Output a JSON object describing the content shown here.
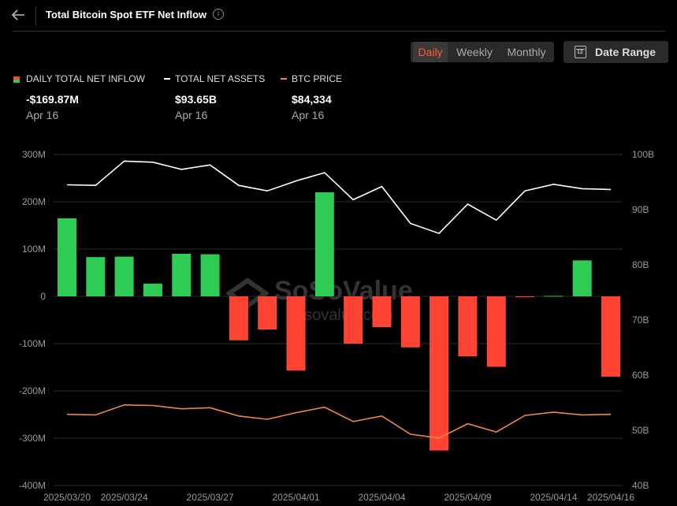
{
  "header": {
    "title": "Total Bitcoin Spot ETF Net Inflow",
    "info_glyph": "i"
  },
  "period": {
    "tabs": [
      "Daily",
      "Weekly",
      "Monthly"
    ],
    "active": "Daily"
  },
  "date_range": {
    "label": "Date Range",
    "calendar_number": "12"
  },
  "legend": [
    {
      "label": "DAILY TOTAL NET INFLOW",
      "value": "-$169.87M",
      "date": "Apr 16"
    },
    {
      "label": "TOTAL NET ASSETS",
      "value": "$93.65B",
      "date": "Apr 16"
    },
    {
      "label": "BTC PRICE",
      "value": "$84,334",
      "date": "Apr 16"
    }
  ],
  "watermark": {
    "brand": "SoSoValue",
    "domain": "sosovalue.com"
  },
  "colors": {
    "positive": "#2ecc55",
    "negative": "#ff4433",
    "assets_line": "#ffffff",
    "price_line": "#f0883e",
    "accent": "#ff5a36"
  },
  "chart_data": {
    "type": "bar",
    "categories": [
      "2025/03/20",
      "2025/03/21",
      "2025/03/24",
      "2025/03/25",
      "2025/03/26",
      "2025/03/27",
      "2025/03/28",
      "2025/03/31",
      "2025/04/01",
      "2025/04/02",
      "2025/04/03",
      "2025/04/04",
      "2025/04/07",
      "2025/04/08",
      "2025/04/09",
      "2025/04/10",
      "2025/04/11",
      "2025/04/14",
      "2025/04/15",
      "2025/04/16"
    ],
    "x_tick_labels": [
      "2025/03/20",
      "2025/03/24",
      "2025/03/27",
      "2025/04/01",
      "2025/04/04",
      "2025/04/09",
      "2025/04/14",
      "2025/04/16"
    ],
    "x_tick_indices": [
      0,
      2,
      5,
      8,
      11,
      14,
      17,
      19
    ],
    "series": [
      {
        "values": [
          165,
          83,
          84,
          27,
          90,
          89,
          -93,
          -70,
          -157,
          220,
          -100,
          -65,
          -108,
          -326,
          -127,
          -149,
          -1,
          1,
          76,
          -169.87
        ]
      },
      {
        "axis": "right",
        "values": [
          94.5,
          94.4,
          98.8,
          98.6,
          97.3,
          98.1,
          94.4,
          93.4,
          95.2,
          96.7,
          91.8,
          94.2,
          87.5,
          85.7,
          91.0,
          88.1,
          93.4,
          94.6,
          93.8,
          93.65
        ]
      },
      {
        "axis": "right",
        "values": [
          52.9,
          52.8,
          54.6,
          54.5,
          53.9,
          54.1,
          52.6,
          52.0,
          53.2,
          54.2,
          51.6,
          52.6,
          49.3,
          48.6,
          51.2,
          49.7,
          52.7,
          53.3,
          52.8,
          52.9
        ]
      }
    ],
    "y_left": {
      "ticks": [
        "300M",
        "200M",
        "100M",
        "0",
        "-100M",
        "-200M",
        "-300M",
        "-400M"
      ],
      "ylim": [
        -400,
        300
      ]
    },
    "y_right": {
      "ticks": [
        "100B",
        "90B",
        "80B",
        "70B",
        "60B",
        "50B",
        "40B"
      ],
      "ylim": [
        40,
        100
      ]
    },
    "grid": true
  }
}
